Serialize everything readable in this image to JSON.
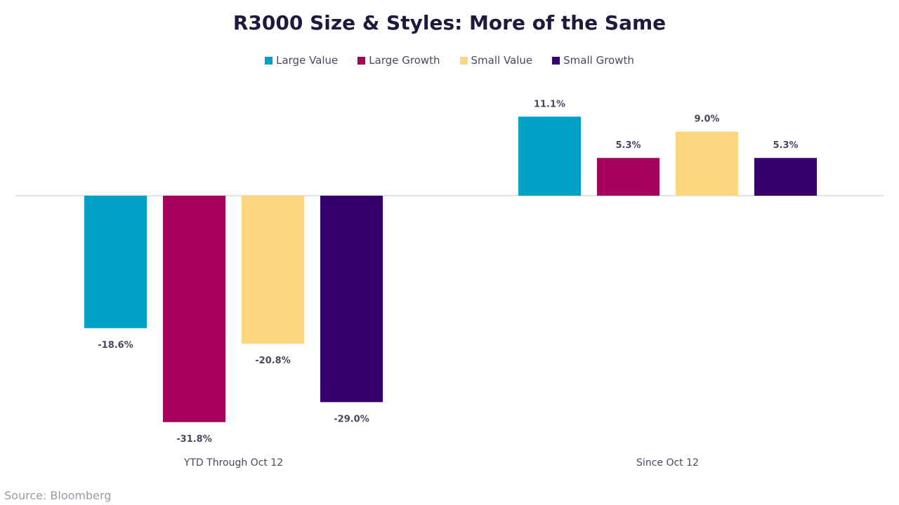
{
  "chart_data": {
    "type": "bar",
    "title": "R3000 Size & Styles: More of the Same",
    "categories": [
      "YTD Through Oct 12",
      "Since Oct 12"
    ],
    "series": [
      {
        "name": "Large Value",
        "color": "#00a0c6",
        "values": [
          -18.6,
          11.1
        ],
        "labels": [
          "-18.6%",
          "11.1%"
        ]
      },
      {
        "name": "Large Growth",
        "color": "#a5005c",
        "values": [
          -31.8,
          5.3
        ],
        "labels": [
          "-31.8%",
          "5.3%"
        ]
      },
      {
        "name": "Small Value",
        "color": "#fdd680",
        "values": [
          -20.8,
          9.0
        ],
        "labels": [
          "-20.8%",
          "9.0%"
        ]
      },
      {
        "name": "Small Growth",
        "color": "#35006b",
        "values": [
          -29.0,
          5.3
        ],
        "labels": [
          "-29.0%",
          "5.3%"
        ]
      }
    ],
    "xlabel": "",
    "ylabel": "",
    "ylim": [
      -31.8,
      17
    ],
    "grid": false,
    "legend": "top-center"
  },
  "source": "Source: Bloomberg"
}
